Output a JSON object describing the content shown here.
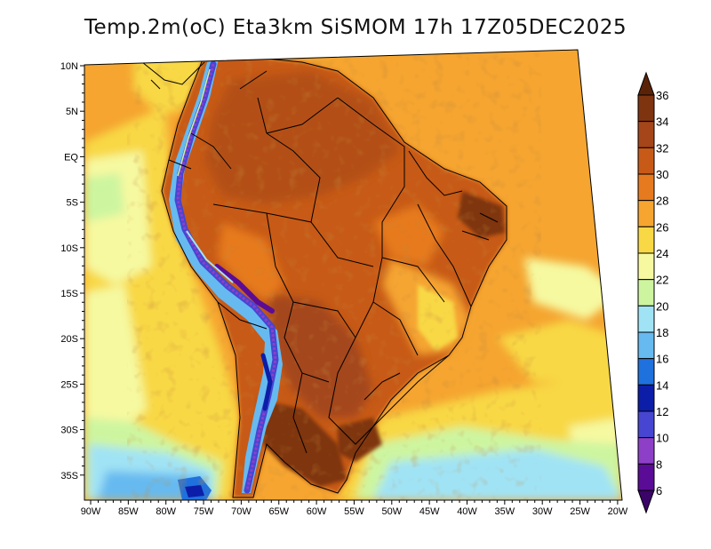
{
  "title": "Temp.2m(oC) Eta3km SiSMOM 17h 17Z05DEC2025",
  "map": {
    "lat_ticks": [
      "10N",
      "5N",
      "EQ",
      "5S",
      "10S",
      "15S",
      "20S",
      "25S",
      "30S",
      "35S"
    ],
    "lon_ticks": [
      "90W",
      "85W",
      "80W",
      "75W",
      "70W",
      "65W",
      "60W",
      "55W",
      "50W",
      "45W",
      "40W",
      "35W",
      "30W",
      "25W",
      "20W"
    ]
  },
  "colorbar": {
    "labels": [
      "36",
      "34",
      "32",
      "30",
      "28",
      "26",
      "24",
      "22",
      "20",
      "18",
      "16",
      "14",
      "12",
      "10",
      "8",
      "6"
    ],
    "colors_top_to_bottom": [
      "#5a2308",
      "#7f3410",
      "#a4461a",
      "#c75a16",
      "#e67a1f",
      "#f5a530",
      "#f8d845",
      "#f6f9a0",
      "#cdf5a0",
      "#a0e3f5",
      "#66baf0",
      "#1f71de",
      "#0c1ea8",
      "#4646d2",
      "#8e3fc8",
      "#5b0c96",
      "#3a0468"
    ]
  }
}
